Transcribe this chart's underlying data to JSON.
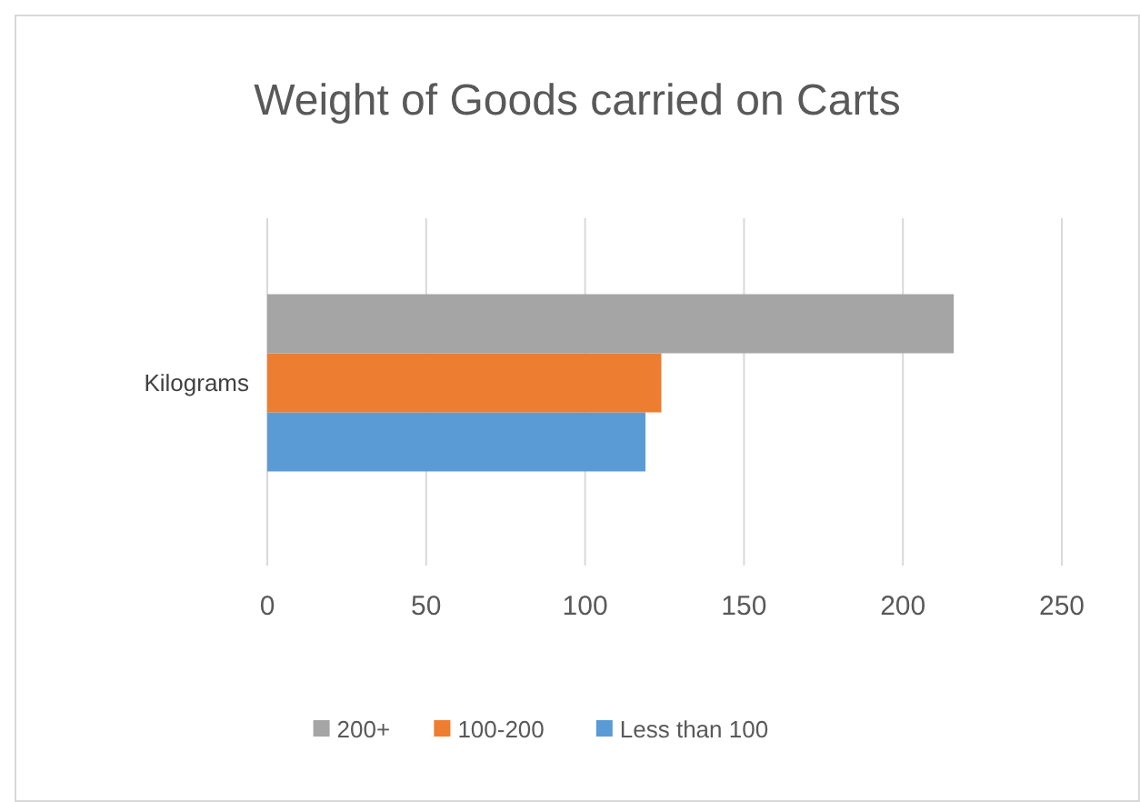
{
  "chart_data": {
    "type": "bar",
    "orientation": "horizontal",
    "title": "Weight of Goods carried on Carts",
    "categories": [
      "Kilograms"
    ],
    "series": [
      {
        "name": "Less than 100",
        "color": "#5b9bd5",
        "values": [
          119
        ]
      },
      {
        "name": "100-200",
        "color": "#ed7d31",
        "values": [
          124
        ]
      },
      {
        "name": "200+",
        "color": "#a5a5a5",
        "values": [
          216
        ]
      }
    ],
    "xlim": [
      0,
      250
    ],
    "xticks": [
      0,
      50,
      100,
      150,
      200,
      250
    ],
    "grid": "x",
    "legend": "bottom"
  }
}
